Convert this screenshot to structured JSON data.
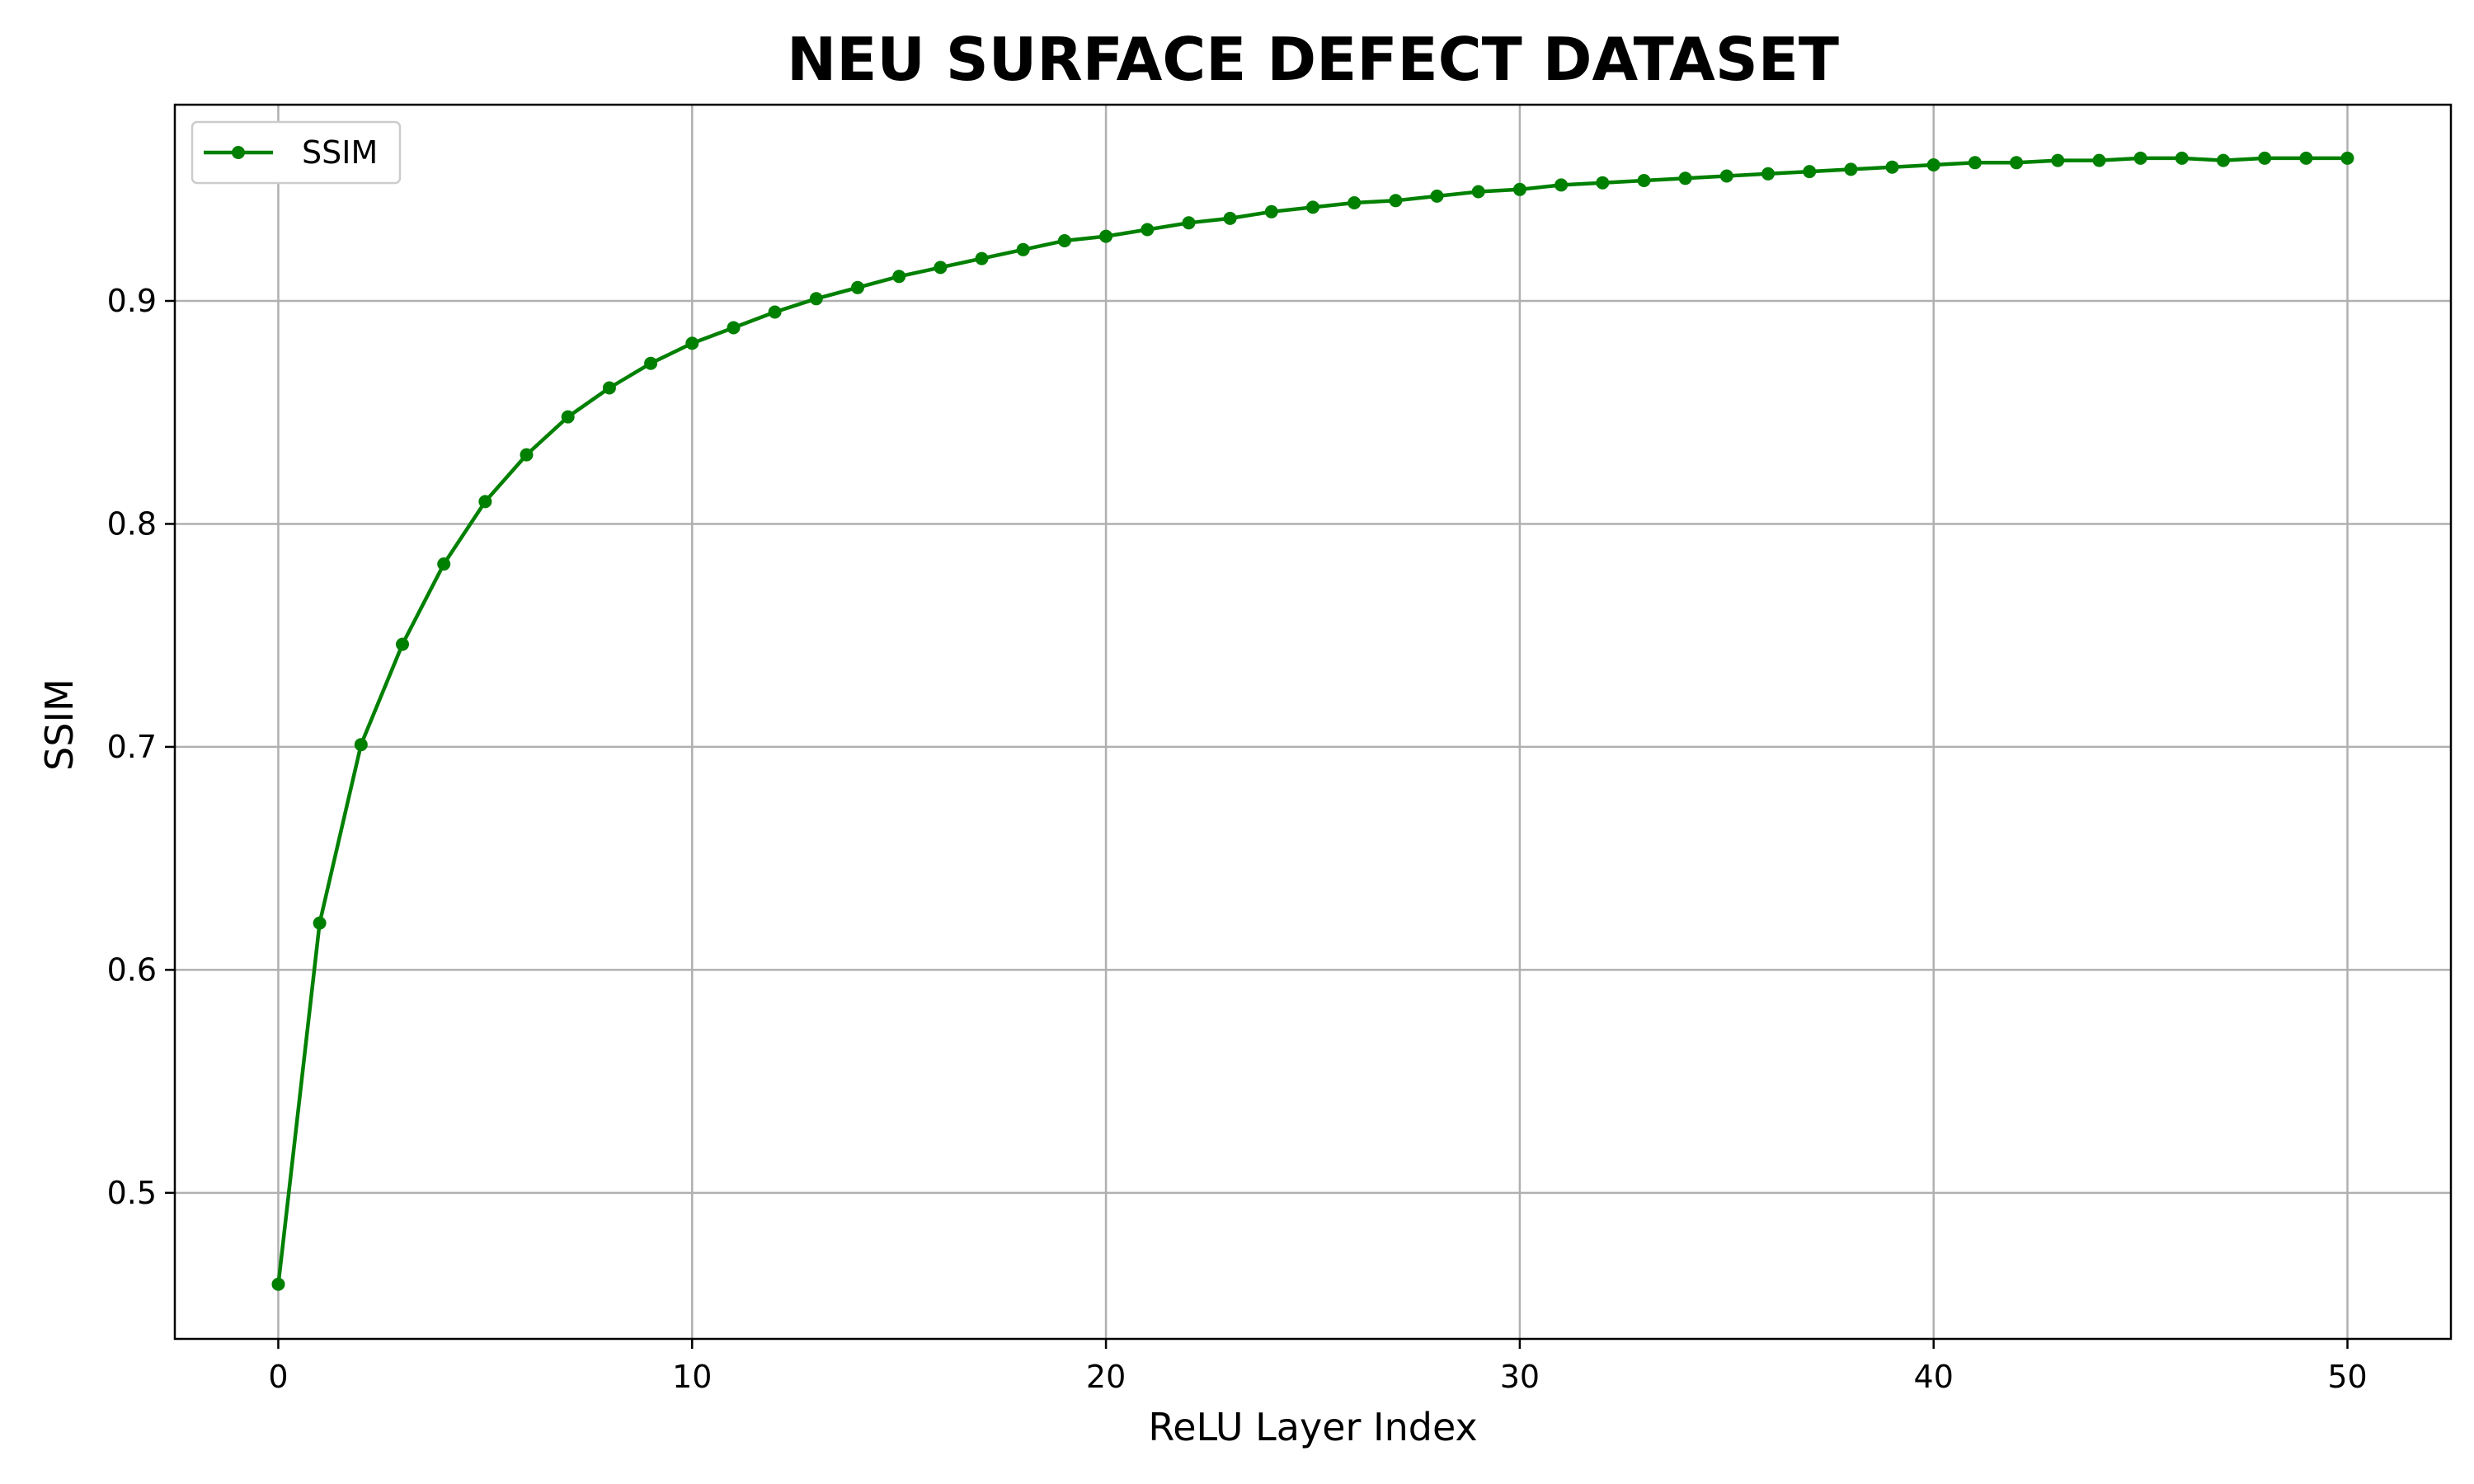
{
  "chart_data": {
    "type": "line",
    "title": "NEU SURFACE DEFECT DATASET",
    "xlabel": "ReLU Layer Index",
    "ylabel": "SSIM",
    "xlim": [
      -2.5,
      52.5
    ],
    "ylim": [
      0.4345,
      0.988
    ],
    "xticks": [
      0,
      10,
      20,
      30,
      40,
      50
    ],
    "xtick_labels": [
      "0",
      "10",
      "20",
      "30",
      "40",
      "50"
    ],
    "yticks": [
      0.5,
      0.6,
      0.7,
      0.8,
      0.9
    ],
    "ytick_labels": [
      "0.5",
      "0.6",
      "0.7",
      "0.8",
      "0.9"
    ],
    "grid": true,
    "legend_position": "top-left",
    "series": [
      {
        "name": "SSIM",
        "color": "#008000",
        "marker": "circle",
        "x": [
          0,
          1,
          2,
          3,
          4,
          5,
          6,
          7,
          8,
          9,
          10,
          11,
          12,
          13,
          14,
          15,
          16,
          17,
          18,
          19,
          20,
          21,
          22,
          23,
          24,
          25,
          26,
          27,
          28,
          29,
          30,
          31,
          32,
          33,
          34,
          35,
          36,
          37,
          38,
          39,
          40,
          41,
          42,
          43,
          44,
          45,
          46,
          47,
          48,
          49,
          50
        ],
        "y": [
          0.459,
          0.621,
          0.701,
          0.746,
          0.782,
          0.81,
          0.831,
          0.848,
          0.861,
          0.872,
          0.881,
          0.888,
          0.895,
          0.901,
          0.906,
          0.911,
          0.915,
          0.919,
          0.923,
          0.927,
          0.929,
          0.932,
          0.935,
          0.937,
          0.94,
          0.942,
          0.944,
          0.945,
          0.947,
          0.949,
          0.95,
          0.952,
          0.953,
          0.954,
          0.955,
          0.956,
          0.957,
          0.958,
          0.959,
          0.96,
          0.961,
          0.962,
          0.962,
          0.963,
          0.963,
          0.964,
          0.964,
          0.963,
          0.964,
          0.964,
          0.964
        ]
      }
    ]
  }
}
